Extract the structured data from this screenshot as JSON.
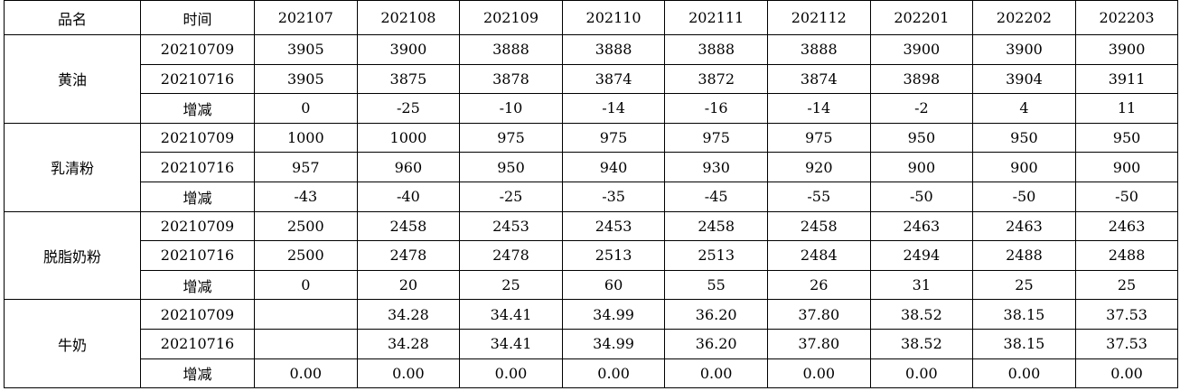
{
  "table": {
    "header": [
      "品名",
      "时间",
      "202107",
      "202108",
      "202109",
      "202110",
      "202111",
      "202112",
      "202201",
      "202202",
      "202203"
    ],
    "groups": [
      {
        "name": "黄油",
        "rows": [
          {
            "label": "20210709",
            "values": [
              "3905",
              "3900",
              "3888",
              "3888",
              "3888",
              "3888",
              "3900",
              "3900",
              "3900"
            ]
          },
          {
            "label": "20210716",
            "values": [
              "3905",
              "3875",
              "3878",
              "3874",
              "3872",
              "3874",
              "3898",
              "3904",
              "3911"
            ]
          },
          {
            "label": "增减",
            "values": [
              "0",
              "-25",
              "-10",
              "-14",
              "-16",
              "-14",
              "-2",
              "4",
              "11"
            ]
          }
        ]
      },
      {
        "name": "乳清粉",
        "rows": [
          {
            "label": "20210709",
            "values": [
              "1000",
              "1000",
              "975",
              "975",
              "975",
              "975",
              "950",
              "950",
              "950"
            ]
          },
          {
            "label": "20210716",
            "values": [
              "957",
              "960",
              "950",
              "940",
              "930",
              "920",
              "900",
              "900",
              "900"
            ]
          },
          {
            "label": "增减",
            "values": [
              "-43",
              "-40",
              "-25",
              "-35",
              "-45",
              "-55",
              "-50",
              "-50",
              "-50"
            ]
          }
        ]
      },
      {
        "name": "脱脂奶粉",
        "rows": [
          {
            "label": "20210709",
            "values": [
              "2500",
              "2458",
              "2453",
              "2453",
              "2458",
              "2458",
              "2463",
              "2463",
              "2463"
            ]
          },
          {
            "label": "20210716",
            "values": [
              "2500",
              "2478",
              "2478",
              "2513",
              "2513",
              "2484",
              "2494",
              "2488",
              "2488"
            ]
          },
          {
            "label": "增减",
            "values": [
              "0",
              "20",
              "25",
              "60",
              "55",
              "26",
              "31",
              "25",
              "25"
            ]
          }
        ]
      },
      {
        "name": "牛奶",
        "rows": [
          {
            "label": "20210709",
            "values": [
              null,
              "34.28",
              "34.41",
              "34.99",
              "36.20",
              "37.80",
              "38.52",
              "38.15",
              "37.53"
            ]
          },
          {
            "label": "20210716",
            "values": [
              null,
              "34.28",
              "34.41",
              "34.99",
              "36.20",
              "37.80",
              "38.52",
              "38.15",
              "37.53"
            ]
          },
          {
            "label": "增减",
            "values": [
              "0.00",
              "0.00",
              "0.00",
              "0.00",
              "0.00",
              "0.00",
              "0.00",
              "0.00",
              "0.00"
            ]
          }
        ]
      }
    ]
  }
}
